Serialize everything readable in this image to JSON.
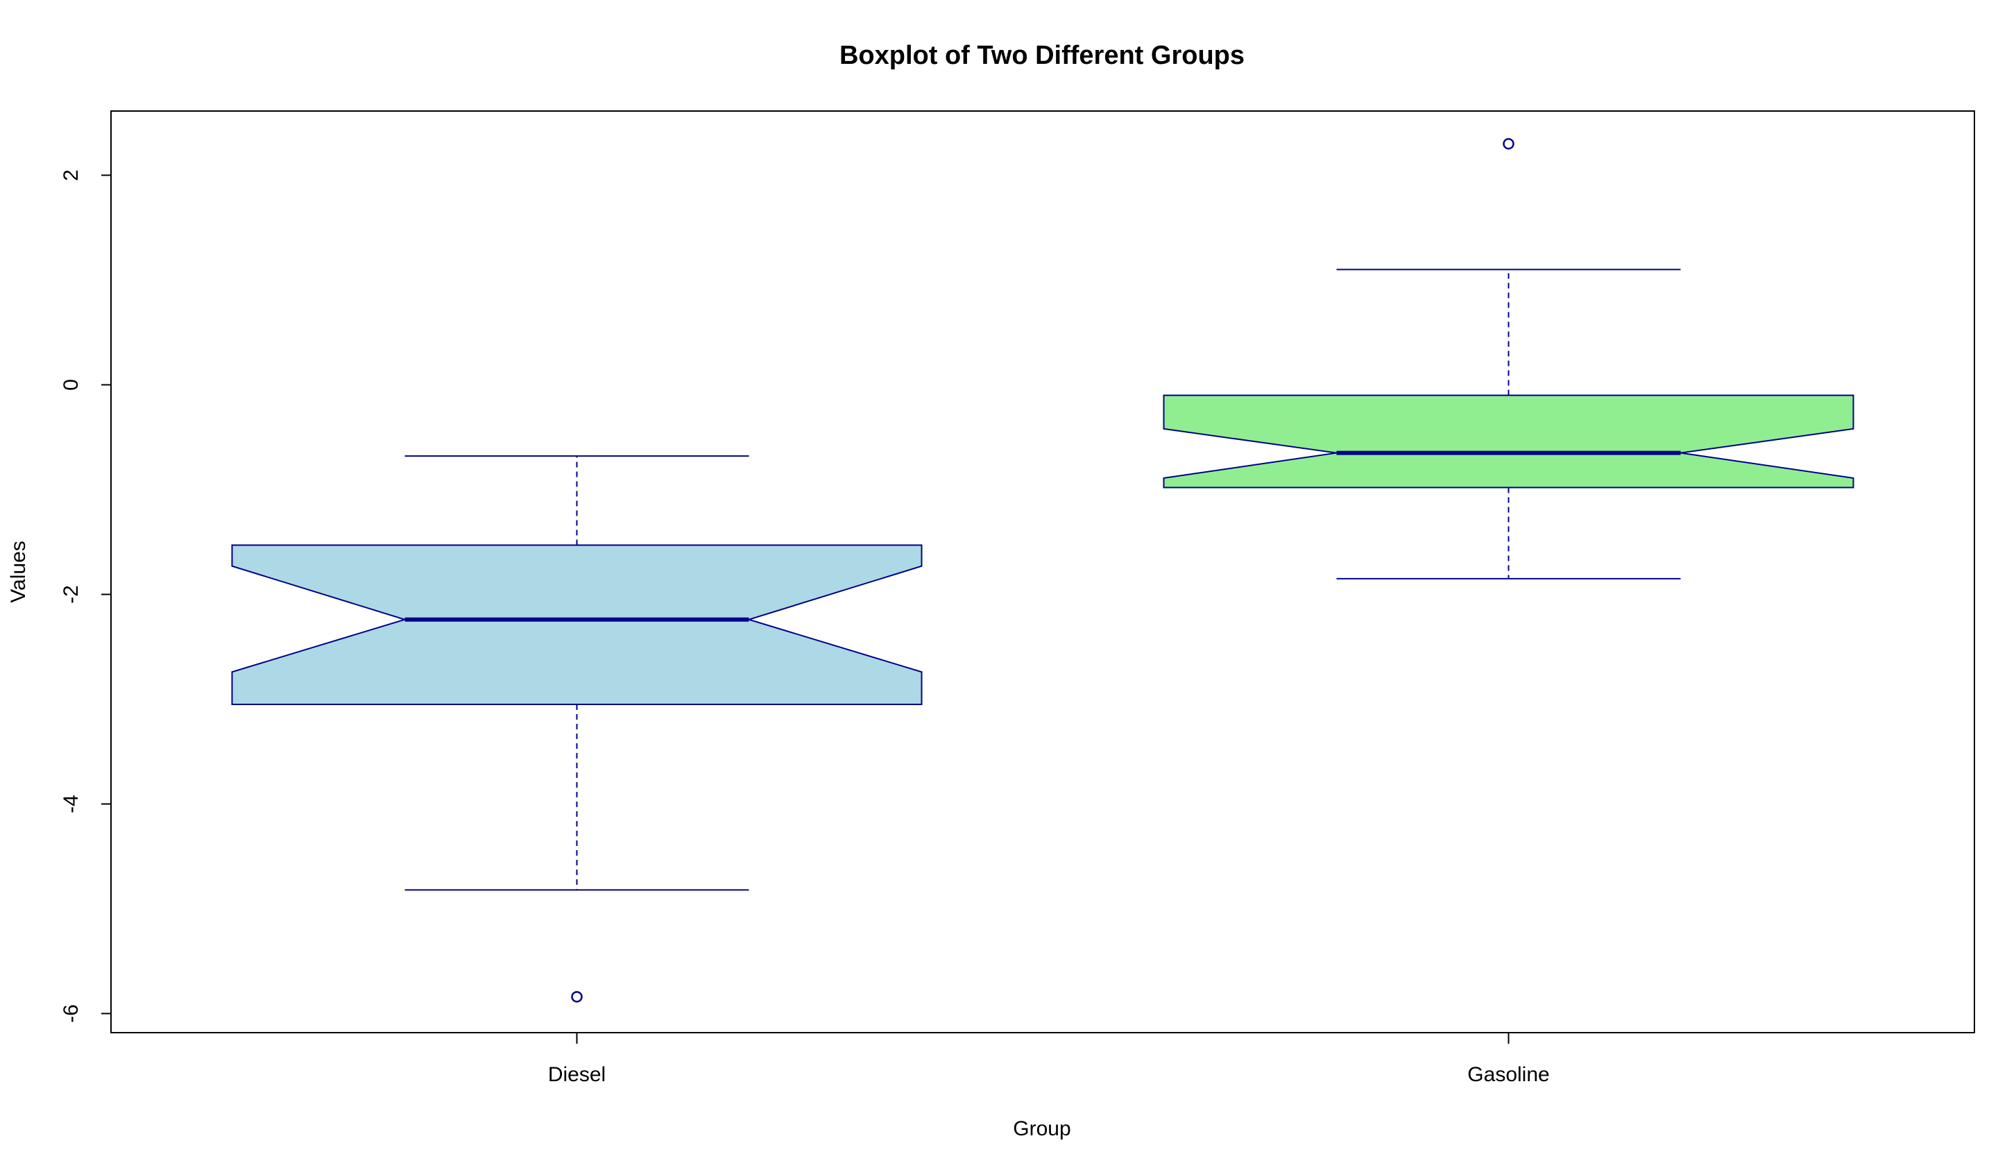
{
  "chart_data": {
    "type": "boxplot",
    "title": "Boxplot of Two Different Groups",
    "xlabel": "Group",
    "ylabel": "Values",
    "ylim": [
      -6.2,
      2.6
    ],
    "yticks": [
      -6,
      -4,
      -2,
      0,
      2
    ],
    "notched": true,
    "groups": [
      {
        "name": "Diesel",
        "fill": "#add8e6",
        "stroke": "#00008b",
        "whisker_low": -4.82,
        "q1": -3.05,
        "median": -2.24,
        "q3": -1.53,
        "whisker_high": -0.68,
        "notch_low": -2.74,
        "notch_high": -1.73,
        "outliers": [
          -5.84
        ]
      },
      {
        "name": "Gasoline",
        "fill": "#90ee90",
        "stroke": "#00008b",
        "whisker_low": -1.85,
        "q1": -0.98,
        "median": -0.65,
        "q3": -0.1,
        "whisker_high": 1.1,
        "notch_low": -0.89,
        "notch_high": -0.42,
        "outliers": [
          2.3
        ]
      }
    ]
  }
}
